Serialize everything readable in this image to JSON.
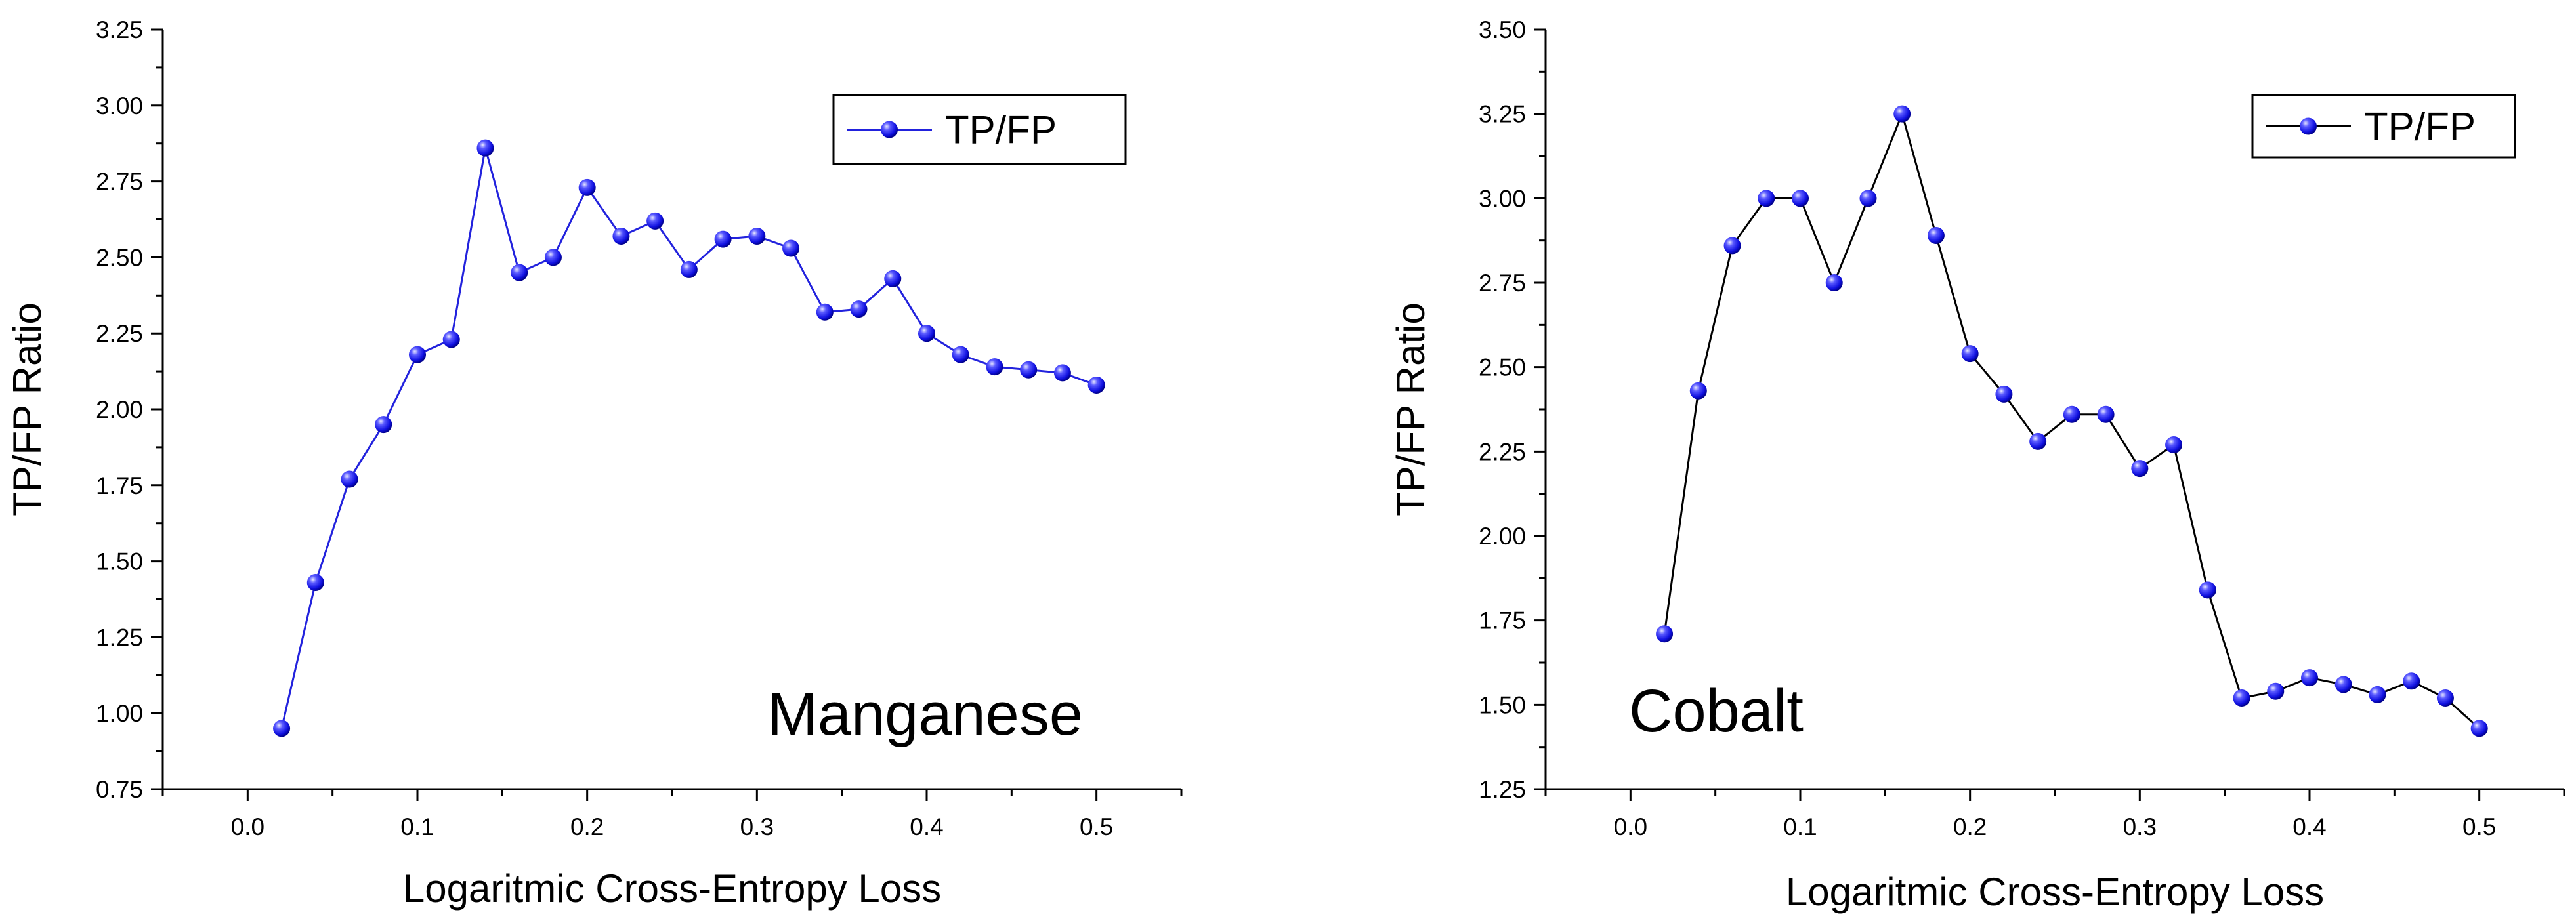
{
  "chart_data": [
    {
      "type": "line",
      "xlabel": "Logaritmic Cross-Entropy Loss",
      "ylabel": "TP/FP Ratio",
      "annotation": "Manganese",
      "xlim": [
        -0.05,
        0.55
      ],
      "ylim": [
        0.75,
        3.25
      ],
      "xticks": [
        "0.0",
        "0.1",
        "0.2",
        "0.3",
        "0.4",
        "0.5"
      ],
      "yticks": [
        "0.75",
        "1.00",
        "1.25",
        "1.50",
        "1.75",
        "2.00",
        "2.25",
        "2.50",
        "2.75",
        "3.00",
        "3.25"
      ],
      "grid": false,
      "legend_position": "top-right",
      "line_color": "#2222dd",
      "marker_color": "#1a1aff",
      "series": [
        {
          "name": "TP/FP",
          "x": [
            0.02,
            0.04,
            0.06,
            0.08,
            0.1,
            0.12,
            0.14,
            0.16,
            0.18,
            0.2,
            0.22,
            0.24,
            0.26,
            0.28,
            0.3,
            0.32,
            0.34,
            0.36,
            0.38,
            0.4,
            0.42,
            0.44,
            0.46,
            0.48,
            0.5
          ],
          "y": [
            0.95,
            1.43,
            1.77,
            1.95,
            2.18,
            2.23,
            2.86,
            2.45,
            2.5,
            2.73,
            2.57,
            2.62,
            2.46,
            2.56,
            2.57,
            2.53,
            2.32,
            2.33,
            2.43,
            2.25,
            2.18,
            2.14,
            2.13,
            2.12,
            2.08
          ]
        }
      ]
    },
    {
      "type": "line",
      "xlabel": "Logaritmic Cross-Entropy Loss",
      "ylabel": "TP/FP Ratio",
      "annotation": "Cobalt",
      "xlim": [
        -0.05,
        0.55
      ],
      "ylim": [
        1.25,
        3.5
      ],
      "xticks": [
        "0.0",
        "0.1",
        "0.2",
        "0.3",
        "0.4",
        "0.5"
      ],
      "yticks": [
        "1.25",
        "1.50",
        "1.75",
        "2.00",
        "2.25",
        "2.50",
        "2.75",
        "3.00",
        "3.25",
        "3.50"
      ],
      "grid": false,
      "legend_position": "top-right",
      "line_color": "#000000",
      "marker_color": "#1a1aff",
      "series": [
        {
          "name": "TP/FP",
          "x": [
            0.02,
            0.04,
            0.06,
            0.08,
            0.1,
            0.12,
            0.14,
            0.16,
            0.18,
            0.2,
            0.22,
            0.24,
            0.26,
            0.28,
            0.3,
            0.32,
            0.34,
            0.36,
            0.38,
            0.4,
            0.42,
            0.44,
            0.46,
            0.48,
            0.5
          ],
          "y": [
            1.71,
            2.43,
            2.86,
            3.0,
            3.0,
            2.75,
            3.0,
            3.25,
            2.89,
            2.54,
            2.42,
            2.28,
            2.36,
            2.36,
            2.2,
            2.27,
            1.84,
            1.52,
            1.54,
            1.58,
            1.56,
            1.53,
            1.57,
            1.52,
            1.43
          ]
        }
      ]
    }
  ]
}
